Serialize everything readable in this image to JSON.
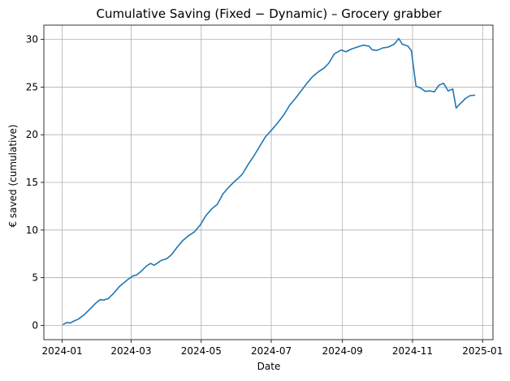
{
  "chart_data": {
    "type": "line",
    "title": "Cumulative Saving (Fixed − Dynamic) – Grocery grabber",
    "xlabel": "Date",
    "ylabel": "€ saved (cumulative)",
    "xlim": [
      "2023-12-16",
      "2025-01-10"
    ],
    "ylim": [
      -1.5,
      31.5
    ],
    "x_ticks": [
      "2024-01-01",
      "2024-03-01",
      "2024-05-01",
      "2024-07-01",
      "2024-09-01",
      "2024-11-01",
      "2025-01-01"
    ],
    "x_tick_labels": [
      "2024-01",
      "2024-03",
      "2024-05",
      "2024-07",
      "2024-09",
      "2024-11",
      "2025-01"
    ],
    "y_ticks": [
      0,
      5,
      10,
      15,
      20,
      25,
      30
    ],
    "y_tick_labels": [
      "0",
      "5",
      "10",
      "15",
      "20",
      "25",
      "30"
    ],
    "grid": true,
    "color": "#1f77b4",
    "series": [
      {
        "x": [
          "2024-01-02",
          "2024-01-05",
          "2024-01-08",
          "2024-01-12",
          "2024-01-15",
          "2024-01-20",
          "2024-01-25",
          "2024-01-30",
          "2024-02-03",
          "2024-02-06",
          "2024-02-10",
          "2024-02-15",
          "2024-02-20",
          "2024-02-23",
          "2024-02-28",
          "2024-03-03",
          "2024-03-06",
          "2024-03-10",
          "2024-03-14",
          "2024-03-18",
          "2024-03-21",
          "2024-03-27",
          "2024-04-01",
          "2024-04-05",
          "2024-04-10",
          "2024-04-15",
          "2024-04-20",
          "2024-04-25",
          "2024-04-30",
          "2024-05-05",
          "2024-05-10",
          "2024-05-15",
          "2024-05-20",
          "2024-05-25",
          "2024-05-30",
          "2024-06-02",
          "2024-06-06",
          "2024-06-11",
          "2024-06-16",
          "2024-06-21",
          "2024-06-26",
          "2024-07-02",
          "2024-07-07",
          "2024-07-12",
          "2024-07-17",
          "2024-07-22",
          "2024-07-27",
          "2024-08-01",
          "2024-08-06",
          "2024-08-11",
          "2024-08-16",
          "2024-08-20",
          "2024-08-25",
          "2024-08-31",
          "2024-09-04",
          "2024-09-09",
          "2024-09-14",
          "2024-09-19",
          "2024-09-24",
          "2024-09-27",
          "2024-10-01",
          "2024-10-06",
          "2024-10-11",
          "2024-10-16",
          "2024-10-20",
          "2024-10-23",
          "2024-10-28",
          "2024-10-31",
          "2024-11-04",
          "2024-11-08",
          "2024-11-12",
          "2024-11-16",
          "2024-11-20",
          "2024-11-24",
          "2024-11-28",
          "2024-12-02",
          "2024-12-06",
          "2024-12-09",
          "2024-12-12",
          "2024-12-17",
          "2024-12-21",
          "2024-12-25"
        ],
        "y": [
          0.1,
          0.3,
          0.25,
          0.5,
          0.65,
          1.1,
          1.7,
          2.3,
          2.7,
          2.65,
          2.8,
          3.4,
          4.1,
          4.4,
          4.9,
          5.2,
          5.3,
          5.7,
          6.2,
          6.5,
          6.3,
          6.8,
          7.0,
          7.4,
          8.2,
          8.9,
          9.4,
          9.8,
          10.5,
          11.5,
          12.2,
          12.7,
          13.8,
          14.5,
          15.1,
          15.4,
          15.9,
          16.9,
          17.8,
          18.8,
          19.8,
          20.6,
          21.3,
          22.1,
          23.1,
          23.8,
          24.6,
          25.4,
          26.1,
          26.6,
          27.0,
          27.5,
          28.5,
          28.9,
          28.7,
          29.0,
          29.2,
          29.4,
          29.3,
          28.9,
          28.85,
          29.1,
          29.2,
          29.5,
          30.1,
          29.5,
          29.3,
          28.8,
          25.1,
          24.9,
          24.55,
          24.6,
          24.5,
          25.2,
          25.4,
          24.6,
          24.8,
          22.8,
          23.2,
          23.8,
          24.1,
          24.15
        ]
      }
    ]
  }
}
